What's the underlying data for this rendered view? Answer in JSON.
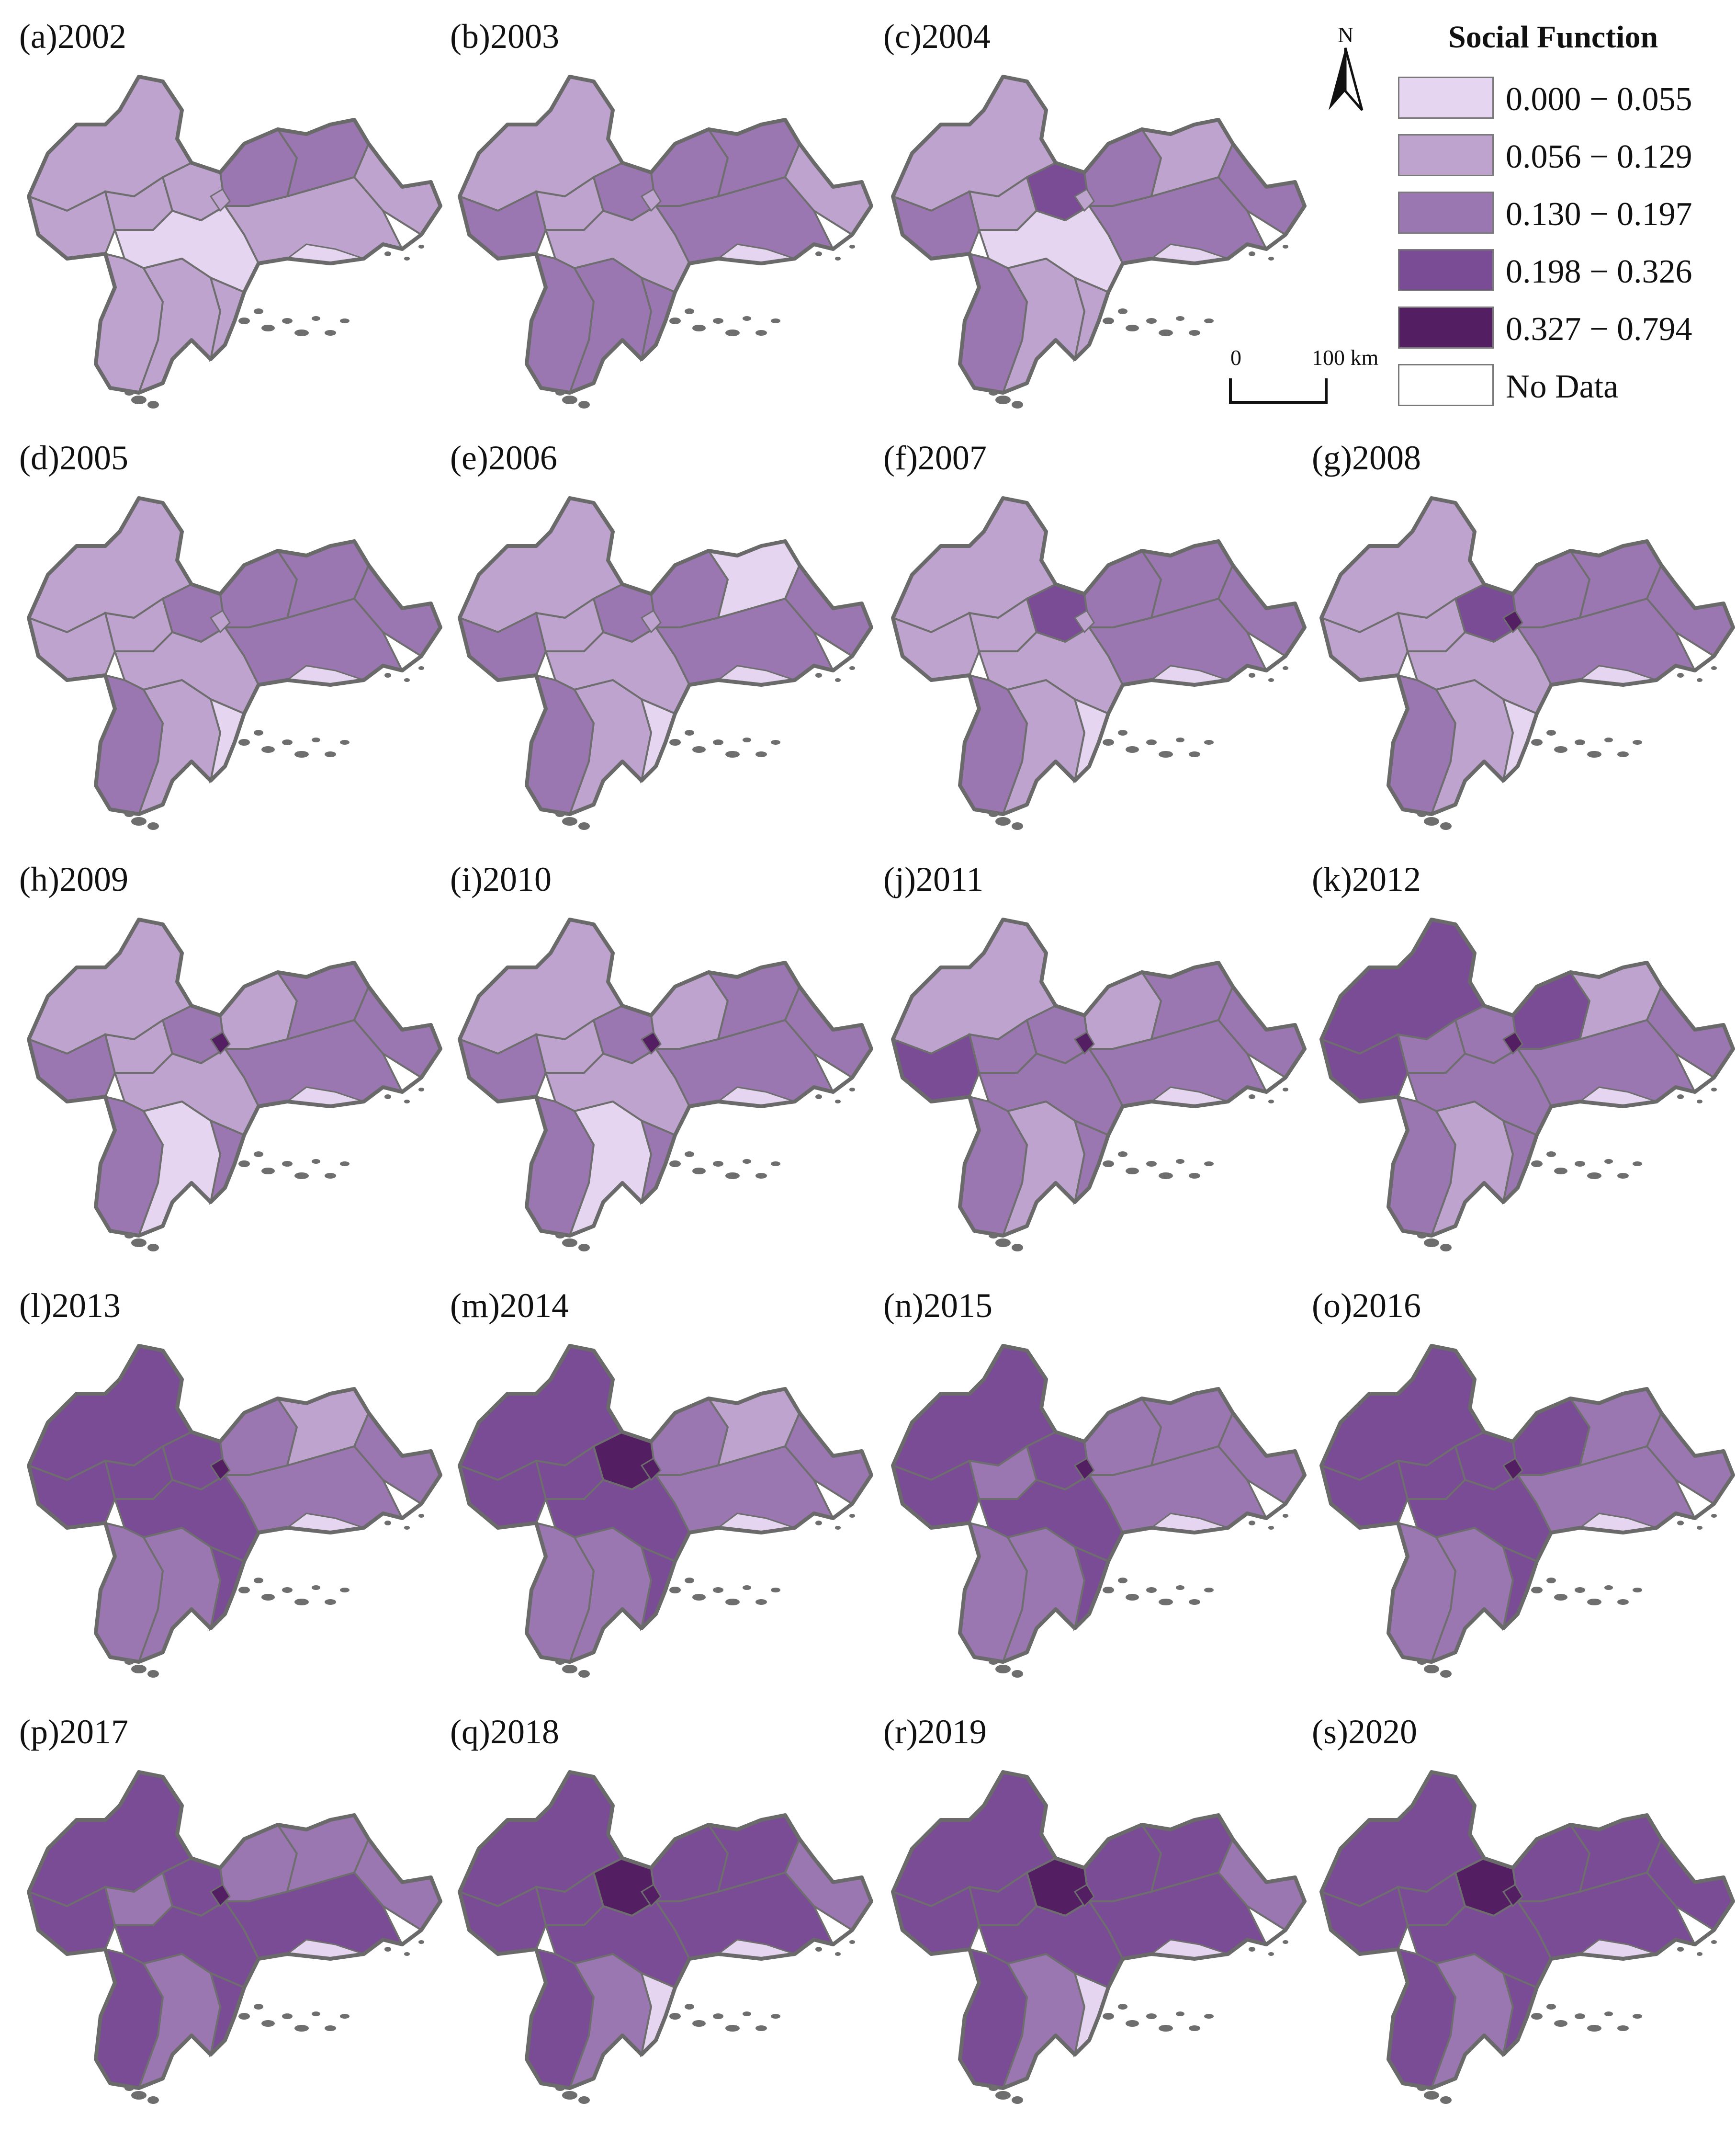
{
  "legend": {
    "title": "Social Function",
    "classes": [
      {
        "label": "0.000 − 0.055",
        "color": "#e6d5f0"
      },
      {
        "label": "0.056 − 0.129",
        "color": "#bea3cf"
      },
      {
        "label": "0.130 − 0.197",
        "color": "#9b77b2"
      },
      {
        "label": "0.198 − 0.326",
        "color": "#7a4c95"
      },
      {
        "label": "0.327 − 0.794",
        "color": "#531e62"
      },
      {
        "label": "No Data",
        "color": "#ffffff"
      }
    ]
  },
  "north_arrow": {
    "letter": "N"
  },
  "scale_bar": {
    "start": "0",
    "end": "100 km"
  },
  "panels": [
    {
      "label": "(a)2002"
    },
    {
      "label": "(b)2003"
    },
    {
      "label": "(c)2004"
    },
    {
      "label": "(d)2005"
    },
    {
      "label": "(e)2006"
    },
    {
      "label": "(f)2007"
    },
    {
      "label": "(g)2008"
    },
    {
      "label": "(h)2009"
    },
    {
      "label": "(i)2010"
    },
    {
      "label": "(j)2011"
    },
    {
      "label": "(k)2012"
    },
    {
      "label": "(l)2013"
    },
    {
      "label": "(m)2014"
    },
    {
      "label": "(n)2015"
    },
    {
      "label": "(o)2016"
    },
    {
      "label": "(p)2017"
    },
    {
      "label": "(q)2018"
    },
    {
      "label": "(r)2019"
    },
    {
      "label": "(s)2020"
    }
  ]
}
